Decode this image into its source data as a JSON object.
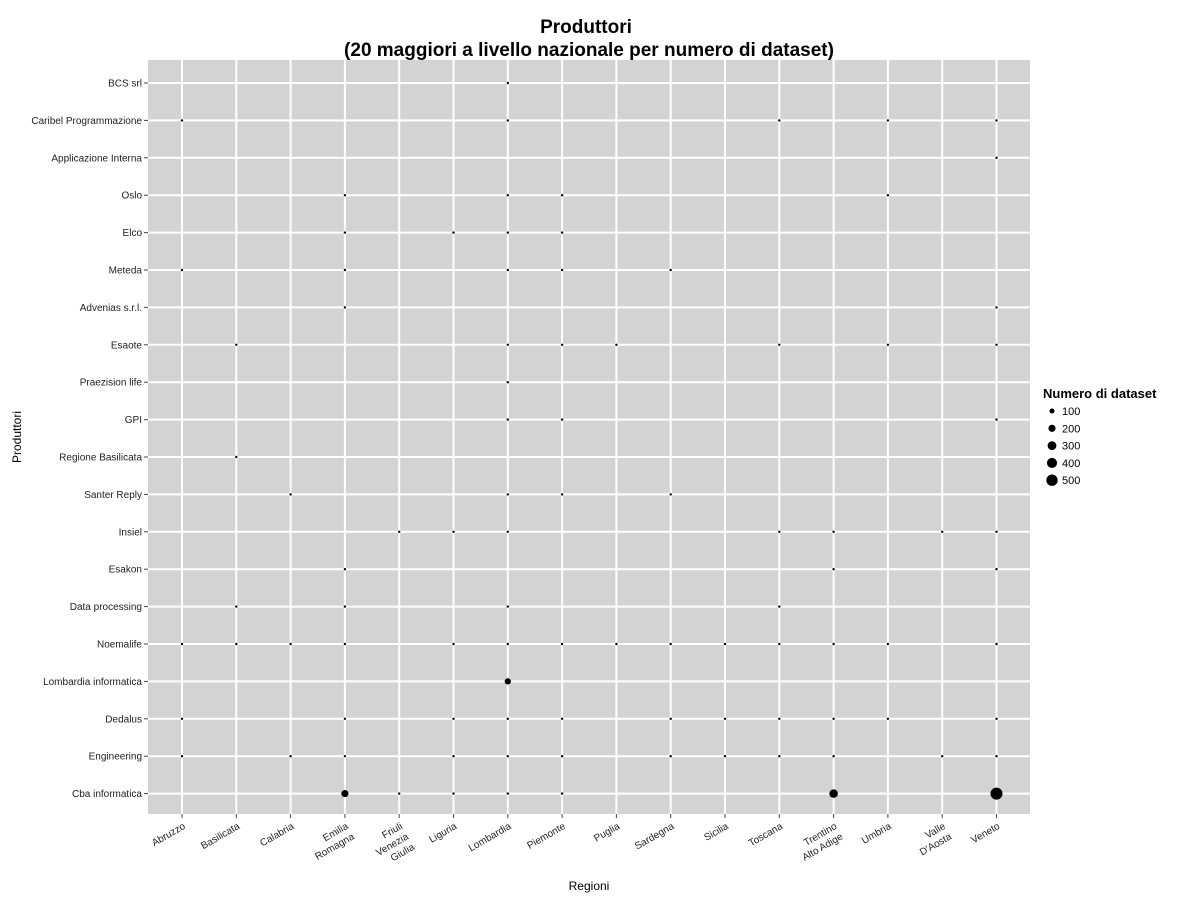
{
  "chart_data": {
    "type": "scatter",
    "title": "Produttori",
    "subtitle": "(20 maggiori a livello nazionale per numero di dataset)",
    "xlabel": "Regioni",
    "ylabel": "Produttori",
    "grid": true,
    "legend_position": "right",
    "legend": {
      "title": "Numero di dataset",
      "sizes": [
        {
          "value": 100,
          "label": "100"
        },
        {
          "value": 200,
          "label": "200"
        },
        {
          "value": 300,
          "label": "300"
        },
        {
          "value": 400,
          "label": "400"
        },
        {
          "value": 500,
          "label": "500"
        }
      ]
    },
    "x_categories": [
      [
        "Abruzzo"
      ],
      [
        "Basilicata"
      ],
      [
        "Calabria"
      ],
      [
        "Emilia",
        "Romagna"
      ],
      [
        "Friuli",
        "Venezia",
        "Giulia"
      ],
      [
        "Liguria"
      ],
      [
        "Lombardia"
      ],
      [
        "Piemonte"
      ],
      [
        "Puglia"
      ],
      [
        "Sardegna"
      ],
      [
        "Sicilia"
      ],
      [
        "Toscana"
      ],
      [
        "Trentino",
        "Alto Adige"
      ],
      [
        "Umbria"
      ],
      [
        "Valle",
        "D'Aosta"
      ],
      [
        "Veneto"
      ]
    ],
    "y_categories": [
      "BCS srl",
      "Caribel Programmazione",
      "Applicazione Interna",
      "Oslo",
      "Elco",
      "Meteda",
      "Advenias s.r.l.",
      "Esaote",
      "Praezision life",
      "GPI",
      "Regione Basilicata",
      "Santer Reply",
      "Insiel",
      "Esakon",
      "Data processing",
      "Noemalife",
      "Lombardia informatica",
      "Dedalus",
      "Engineering",
      "Cba informatica"
    ],
    "points": [
      {
        "x": "Lombardia",
        "y": "BCS srl",
        "n": 5
      },
      {
        "x": "Abruzzo",
        "y": "Caribel Programmazione",
        "n": 5
      },
      {
        "x": "Lombardia",
        "y": "Caribel Programmazione",
        "n": 5
      },
      {
        "x": "Toscana",
        "y": "Caribel Programmazione",
        "n": 5
      },
      {
        "x": "Umbria",
        "y": "Caribel Programmazione",
        "n": 5
      },
      {
        "x": "Veneto",
        "y": "Caribel Programmazione",
        "n": 10
      },
      {
        "x": "Veneto",
        "y": "Applicazione Interna",
        "n": 5
      },
      {
        "x": "Emilia Romagna",
        "y": "Oslo",
        "n": 5
      },
      {
        "x": "Lombardia",
        "y": "Oslo",
        "n": 5
      },
      {
        "x": "Piemonte",
        "y": "Oslo",
        "n": 5
      },
      {
        "x": "Umbria",
        "y": "Oslo",
        "n": 5
      },
      {
        "x": "Emilia Romagna",
        "y": "Elco",
        "n": 5
      },
      {
        "x": "Liguria",
        "y": "Elco",
        "n": 5
      },
      {
        "x": "Lombardia",
        "y": "Elco",
        "n": 5
      },
      {
        "x": "Piemonte",
        "y": "Elco",
        "n": 5
      },
      {
        "x": "Abruzzo",
        "y": "Meteda",
        "n": 5
      },
      {
        "x": "Emilia Romagna",
        "y": "Meteda",
        "n": 5
      },
      {
        "x": "Lombardia",
        "y": "Meteda",
        "n": 5
      },
      {
        "x": "Piemonte",
        "y": "Meteda",
        "n": 5
      },
      {
        "x": "Sardegna",
        "y": "Meteda",
        "n": 5
      },
      {
        "x": "Emilia Romagna",
        "y": "Advenias s.r.l.",
        "n": 5
      },
      {
        "x": "Veneto",
        "y": "Advenias s.r.l.",
        "n": 5
      },
      {
        "x": "Basilicata",
        "y": "Esaote",
        "n": 5
      },
      {
        "x": "Lombardia",
        "y": "Esaote",
        "n": 5
      },
      {
        "x": "Piemonte",
        "y": "Esaote",
        "n": 5
      },
      {
        "x": "Puglia",
        "y": "Esaote",
        "n": 5
      },
      {
        "x": "Toscana",
        "y": "Esaote",
        "n": 5
      },
      {
        "x": "Umbria",
        "y": "Esaote",
        "n": 5
      },
      {
        "x": "Veneto",
        "y": "Esaote",
        "n": 5
      },
      {
        "x": "Lombardia",
        "y": "Praezision life",
        "n": 5
      },
      {
        "x": "Lombardia",
        "y": "GPI",
        "n": 5
      },
      {
        "x": "Piemonte",
        "y": "GPI",
        "n": 5
      },
      {
        "x": "Veneto",
        "y": "GPI",
        "n": 5
      },
      {
        "x": "Basilicata",
        "y": "Regione Basilicata",
        "n": 10
      },
      {
        "x": "Calabria",
        "y": "Santer Reply",
        "n": 5
      },
      {
        "x": "Lombardia",
        "y": "Santer Reply",
        "n": 5
      },
      {
        "x": "Piemonte",
        "y": "Santer Reply",
        "n": 5
      },
      {
        "x": "Sardegna",
        "y": "Santer Reply",
        "n": 5
      },
      {
        "x": "Friuli Venezia Giulia",
        "y": "Insiel",
        "n": 5
      },
      {
        "x": "Liguria",
        "y": "Insiel",
        "n": 5
      },
      {
        "x": "Lombardia",
        "y": "Insiel",
        "n": 5
      },
      {
        "x": "Toscana",
        "y": "Insiel",
        "n": 5
      },
      {
        "x": "Trentino Alto Adige",
        "y": "Insiel",
        "n": 5
      },
      {
        "x": "Valle D'Aosta",
        "y": "Insiel",
        "n": 5
      },
      {
        "x": "Veneto",
        "y": "Insiel",
        "n": 5
      },
      {
        "x": "Emilia Romagna",
        "y": "Esakon",
        "n": 5
      },
      {
        "x": "Trentino Alto Adige",
        "y": "Esakon",
        "n": 5
      },
      {
        "x": "Veneto",
        "y": "Esakon",
        "n": 5
      },
      {
        "x": "Basilicata",
        "y": "Data processing",
        "n": 5
      },
      {
        "x": "Emilia Romagna",
        "y": "Data processing",
        "n": 5
      },
      {
        "x": "Lombardia",
        "y": "Data processing",
        "n": 5
      },
      {
        "x": "Toscana",
        "y": "Data processing",
        "n": 5
      },
      {
        "x": "Abruzzo",
        "y": "Noemalife",
        "n": 5
      },
      {
        "x": "Basilicata",
        "y": "Noemalife",
        "n": 5
      },
      {
        "x": "Calabria",
        "y": "Noemalife",
        "n": 5
      },
      {
        "x": "Emilia Romagna",
        "y": "Noemalife",
        "n": 5
      },
      {
        "x": "Liguria",
        "y": "Noemalife",
        "n": 5
      },
      {
        "x": "Lombardia",
        "y": "Noemalife",
        "n": 5
      },
      {
        "x": "Piemonte",
        "y": "Noemalife",
        "n": 5
      },
      {
        "x": "Puglia",
        "y": "Noemalife",
        "n": 5
      },
      {
        "x": "Sardegna",
        "y": "Noemalife",
        "n": 5
      },
      {
        "x": "Sicilia",
        "y": "Noemalife",
        "n": 5
      },
      {
        "x": "Toscana",
        "y": "Noemalife",
        "n": 5
      },
      {
        "x": "Trentino Alto Adige",
        "y": "Noemalife",
        "n": 5
      },
      {
        "x": "Umbria",
        "y": "Noemalife",
        "n": 5
      },
      {
        "x": "Veneto",
        "y": "Noemalife",
        "n": 5
      },
      {
        "x": "Lombardia",
        "y": "Lombardia informatica",
        "n": 150
      },
      {
        "x": "Abruzzo",
        "y": "Dedalus",
        "n": 5
      },
      {
        "x": "Emilia Romagna",
        "y": "Dedalus",
        "n": 5
      },
      {
        "x": "Liguria",
        "y": "Dedalus",
        "n": 5
      },
      {
        "x": "Lombardia",
        "y": "Dedalus",
        "n": 5
      },
      {
        "x": "Piemonte",
        "y": "Dedalus",
        "n": 5
      },
      {
        "x": "Sardegna",
        "y": "Dedalus",
        "n": 5
      },
      {
        "x": "Sicilia",
        "y": "Dedalus",
        "n": 5
      },
      {
        "x": "Toscana",
        "y": "Dedalus",
        "n": 10
      },
      {
        "x": "Trentino Alto Adige",
        "y": "Dedalus",
        "n": 5
      },
      {
        "x": "Umbria",
        "y": "Dedalus",
        "n": 5
      },
      {
        "x": "Veneto",
        "y": "Dedalus",
        "n": 10
      },
      {
        "x": "Abruzzo",
        "y": "Engineering",
        "n": 5
      },
      {
        "x": "Calabria",
        "y": "Engineering",
        "n": 5
      },
      {
        "x": "Emilia Romagna",
        "y": "Engineering",
        "n": 5
      },
      {
        "x": "Liguria",
        "y": "Engineering",
        "n": 5
      },
      {
        "x": "Lombardia",
        "y": "Engineering",
        "n": 5
      },
      {
        "x": "Piemonte",
        "y": "Engineering",
        "n": 5
      },
      {
        "x": "Sardegna",
        "y": "Engineering",
        "n": 10
      },
      {
        "x": "Sicilia",
        "y": "Engineering",
        "n": 5
      },
      {
        "x": "Toscana",
        "y": "Engineering",
        "n": 5
      },
      {
        "x": "Trentino Alto Adige",
        "y": "Engineering",
        "n": 5
      },
      {
        "x": "Valle D'Aosta",
        "y": "Engineering",
        "n": 5
      },
      {
        "x": "Veneto",
        "y": "Engineering",
        "n": 5
      },
      {
        "x": "Emilia Romagna",
        "y": "Cba informatica",
        "n": 200
      },
      {
        "x": "Friuli Venezia Giulia",
        "y": "Cba informatica",
        "n": 10
      },
      {
        "x": "Liguria",
        "y": "Cba informatica",
        "n": 5
      },
      {
        "x": "Lombardia",
        "y": "Cba informatica",
        "n": 5
      },
      {
        "x": "Piemonte",
        "y": "Cba informatica",
        "n": 10
      },
      {
        "x": "Trentino Alto Adige",
        "y": "Cba informatica",
        "n": 280
      },
      {
        "x": "Veneto",
        "y": "Cba informatica",
        "n": 560
      }
    ],
    "colors": {
      "panel": "#d3d3d3",
      "grid": "#ffffff",
      "point": "#000000"
    }
  }
}
